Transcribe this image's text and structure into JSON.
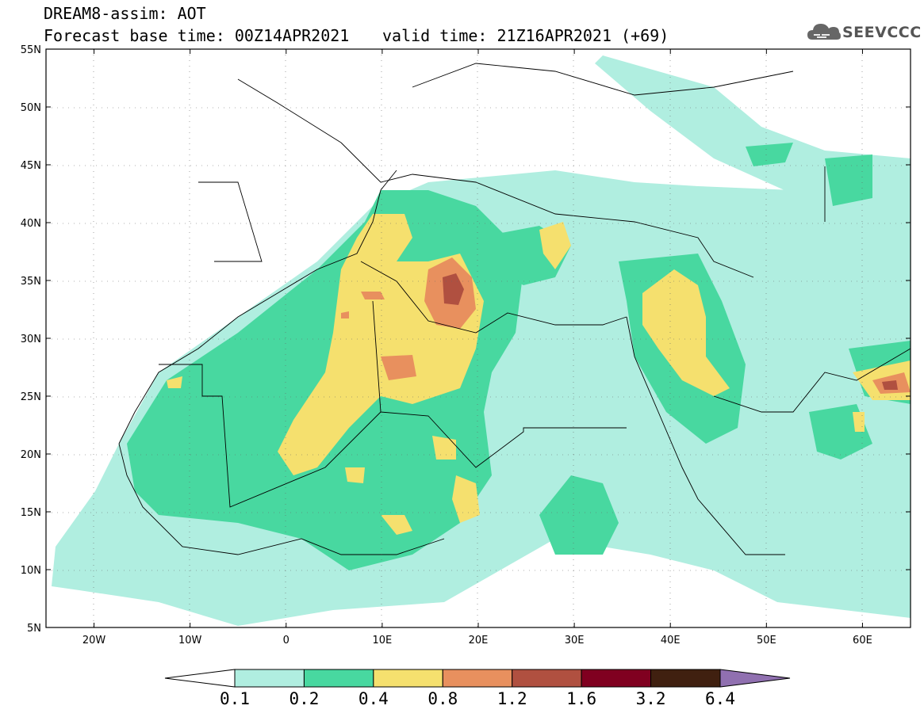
{
  "header": {
    "title": "DREAM8-assim: AOT",
    "base_time": "Forecast base time: 00Z14APR2021",
    "valid_time": "valid time: 21Z16APR2021 (+69)"
  },
  "logo": {
    "text": "SEEVCCC",
    "icon": "cloud-icon"
  },
  "map": {
    "lat_ticks": [
      "55N",
      "50N",
      "45N",
      "40N",
      "35N",
      "30N",
      "25N",
      "20N",
      "15N",
      "10N",
      "5N"
    ],
    "lon_ticks": [
      "20W",
      "10W",
      "0",
      "10E",
      "20E",
      "30E",
      "40E",
      "50E",
      "60E"
    ],
    "lat_range": [
      5,
      55
    ],
    "lon_range": [
      -25,
      65
    ],
    "grid": "dotted"
  },
  "colorbar": {
    "thresholds": [
      "0.1",
      "0.2",
      "0.4",
      "0.8",
      "1.2",
      "1.6",
      "3.2",
      "6.4"
    ],
    "colors": [
      "#ffffff",
      "#b0eee0",
      "#48d8a0",
      "#f5e06e",
      "#e8905e",
      "#b05040",
      "#800020",
      "#402010",
      "#9070b0"
    ]
  }
}
